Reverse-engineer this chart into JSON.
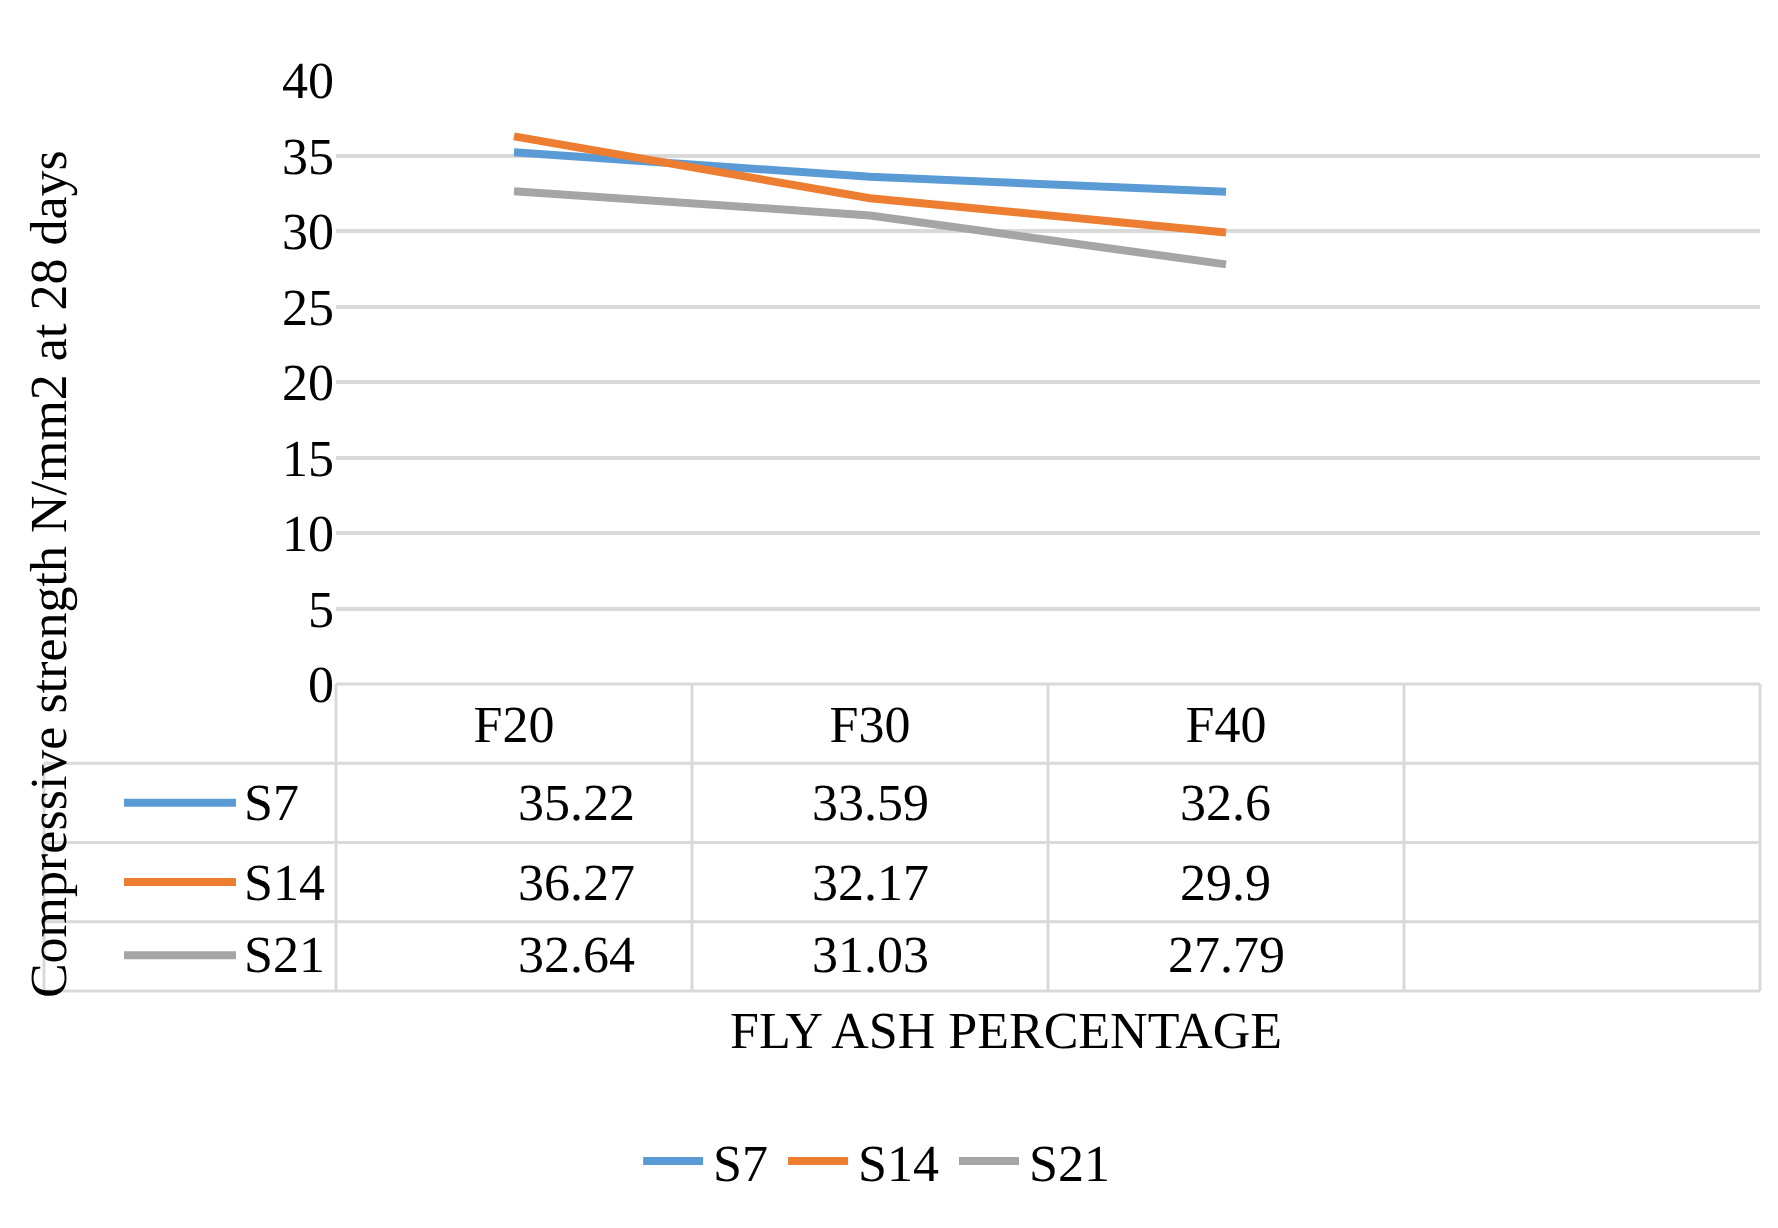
{
  "chart_data": {
    "type": "line",
    "ylabel": "Compressive strength N/mm2 at 28 days",
    "xlabel": "FLY ASH PERCENTAGE",
    "categories": [
      "F20",
      "F30",
      "F40",
      null
    ],
    "series": [
      {
        "name": "S7",
        "color": "#5b9bd5",
        "values": [
          35.22,
          33.59,
          32.6,
          null
        ]
      },
      {
        "name": "S14",
        "color": "#ed7d31",
        "values": [
          36.27,
          32.17,
          29.9,
          null
        ]
      },
      {
        "name": "S21",
        "color": "#a5a5a5",
        "values": [
          32.64,
          31.03,
          27.79,
          null
        ]
      }
    ],
    "ylim": [
      0,
      40
    ],
    "yticks": [
      0,
      5,
      10,
      15,
      20,
      25,
      30,
      35,
      40
    ],
    "grid": "y",
    "legend": "bottom",
    "data_labels": true
  }
}
